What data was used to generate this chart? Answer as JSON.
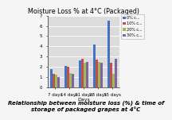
{
  "title": "Moisture Loss % at 4°C (Packaged)",
  "xlabel": "Days",
  "categories": [
    "7 days",
    "14 days",
    "21 days",
    "28 days",
    "35 days"
  ],
  "series": [
    {
      "label": "0% c...",
      "color": "#4472C4",
      "values": [
        1.8,
        2.1,
        2.6,
        4.2,
        6.5
      ]
    },
    {
      "label": "10% c...",
      "color": "#C0504D",
      "values": [
        1.3,
        2.0,
        2.8,
        2.7,
        2.4
      ]
    },
    {
      "label": "20% c...",
      "color": "#9BBB59",
      "values": [
        1.2,
        1.4,
        2.4,
        2.5,
        1.3
      ]
    },
    {
      "label": "30% c...",
      "color": "#8064A2",
      "values": [
        1.0,
        1.3,
        2.5,
        2.4,
        2.8
      ]
    }
  ],
  "ylim": [
    0,
    7
  ],
  "ytick_step": 1,
  "title_fontsize": 5.8,
  "axis_fontsize": 4.5,
  "tick_fontsize": 4.0,
  "legend_fontsize": 3.5,
  "plot_bg": "#DCDCDC",
  "fig_bg": "#F5F5F5",
  "caption": "Relationship between moisture loss (%) & time of\nstorage of packaged grapes at 4°C",
  "caption_fontsize": 5.0
}
